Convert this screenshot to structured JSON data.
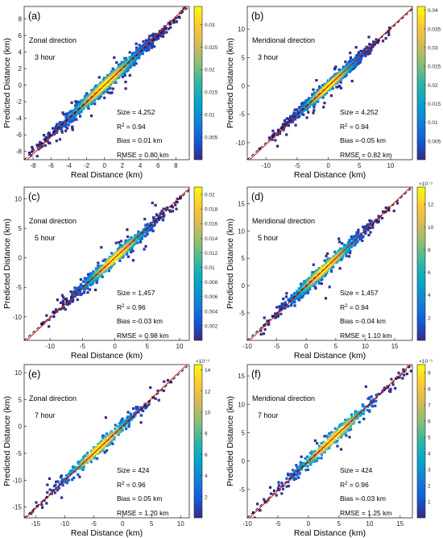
{
  "chart_data": [
    {
      "type": "scatter",
      "panel_label": "(a)",
      "direction_label": "Zonal direction",
      "time_label": "3 hour",
      "xlabel": "Real Distance (km)",
      "ylabel": "Predicted Distance (km)",
      "xlim": [
        -9,
        9.5
      ],
      "ylim": [
        -9,
        9.5
      ],
      "xticks": [
        -8,
        -6,
        -4,
        -2,
        0,
        2,
        4,
        6,
        8
      ],
      "yticks": [
        -8,
        -6,
        -4,
        -2,
        0,
        2,
        4,
        6,
        8
      ],
      "colorbar_ticks": [
        0.005,
        0.01,
        0.015,
        0.02,
        0.025,
        0.03
      ],
      "colorbar_tick_labels": [
        "0.005",
        "0.01",
        "0.015",
        "0.02",
        "0.025",
        "0.03"
      ],
      "colorbar_max": 0.034,
      "colorbar_exponent": "",
      "stats": {
        "size": "Size = 4,252",
        "r2": "0.94",
        "bias": "Bias = 0.01 km",
        "rmse": "RMSE = 0.80 km"
      },
      "fit_line": {
        "slope": 1.0,
        "intercept": 0.0
      },
      "point_spread_x": 3.1,
      "point_noise": 0.75,
      "n_points": 1300
    },
    {
      "type": "scatter",
      "panel_label": "(b)",
      "direction_label": "Meridional direction",
      "time_label": "3 hour",
      "xlabel": "Real Distance (km)",
      "ylabel": "Predicted Distance (km)",
      "xlim": [
        -13,
        13.5
      ],
      "ylim": [
        -13,
        14
      ],
      "xticks": [
        -10,
        -5,
        0,
        5,
        10
      ],
      "yticks": [
        -10,
        -5,
        0,
        5,
        10
      ],
      "colorbar_ticks": [
        0.005,
        0.01,
        0.015,
        0.02,
        0.025,
        0.03,
        0.035,
        0.04
      ],
      "colorbar_tick_labels": [
        "0.005",
        "0.01",
        "0.015",
        "0.02",
        "0.025",
        "0.03",
        "0.035",
        "0.04"
      ],
      "colorbar_max": 0.041,
      "colorbar_exponent": "",
      "stats": {
        "size": "Size = 4,252",
        "r2": "0.94",
        "bias": "Bias =-0.05 km",
        "rmse": "RMSE = 0.82 km"
      },
      "fit_line": {
        "slope": 1.0,
        "intercept": -0.05
      },
      "point_spread_x": 3.4,
      "point_noise": 0.8,
      "n_points": 1300
    },
    {
      "type": "scatter",
      "panel_label": "(c)",
      "direction_label": "Zonal direction",
      "time_label": "5 hour",
      "xlabel": "Real Distance (km)",
      "ylabel": "Predicted Distance (km)",
      "xlim": [
        -14,
        11.5
      ],
      "ylim": [
        -14,
        12
      ],
      "xticks": [
        -10,
        -5,
        0,
        5,
        10
      ],
      "yticks": [
        -10,
        -5,
        0,
        5,
        10
      ],
      "colorbar_ticks": [
        0.002,
        0.004,
        0.006,
        0.008,
        0.01,
        0.012,
        0.014,
        0.016,
        0.018,
        0.02
      ],
      "colorbar_tick_labels": [
        "0.002",
        "0.004",
        "0.006",
        "0.008",
        "0.01",
        "0.012",
        "0.014",
        "0.016",
        "0.018",
        "0.02"
      ],
      "colorbar_max": 0.021,
      "colorbar_exponent": "",
      "stats": {
        "size": "Size = 1,457",
        "r2": "0.96",
        "bias": "Bias =-0.03 km",
        "rmse": "RMSE = 0.98 km"
      },
      "fit_line": {
        "slope": 1.0,
        "intercept": -0.03
      },
      "point_spread_x": 3.8,
      "point_noise": 1.0,
      "n_points": 800
    },
    {
      "type": "scatter",
      "panel_label": "(d)",
      "direction_label": "Meridional direction",
      "time_label": "5 hour",
      "xlabel": "Real Distance (km)",
      "ylabel": "Predicted Distance (km)",
      "xlim": [
        -10,
        18
      ],
      "ylim": [
        -10,
        18
      ],
      "xticks": [
        -10,
        -5,
        0,
        5,
        10,
        15
      ],
      "yticks": [
        -5,
        0,
        5,
        10,
        15
      ],
      "colorbar_ticks": [
        2,
        4,
        6,
        8,
        10,
        12
      ],
      "colorbar_tick_labels": [
        "2",
        "4",
        "6",
        "8",
        "10",
        "12"
      ],
      "colorbar_max": 13.5,
      "colorbar_exponent": "×10⁻³",
      "stats": {
        "size": "Size = 1,457",
        "r2": "0.94",
        "bias": "Bias =-0.04 km",
        "rmse": "RMSE = 1.10 km"
      },
      "fit_line": {
        "slope": 1.0,
        "intercept": -0.04
      },
      "point_spread_x": 4.2,
      "point_noise": 1.1,
      "n_points": 800,
      "center": 3
    },
    {
      "type": "scatter",
      "panel_label": "(e)",
      "direction_label": "Zonal direction",
      "time_label": "7 hour",
      "xlabel": "Real Distance (km)",
      "ylabel": "Predicted Distance (km)",
      "xlim": [
        -17,
        11.5
      ],
      "ylim": [
        -17,
        11.5
      ],
      "xticks": [
        -15,
        -10,
        -5,
        0,
        5,
        10
      ],
      "yticks": [
        -15,
        -10,
        -5,
        0,
        5,
        10
      ],
      "colorbar_ticks": [
        2,
        4,
        6,
        8,
        10,
        12,
        14
      ],
      "colorbar_tick_labels": [
        "2",
        "4",
        "6",
        "8",
        "10",
        "12",
        "14"
      ],
      "colorbar_max": 14.5,
      "colorbar_exponent": "×10⁻³",
      "stats": {
        "size": "Size = 424",
        "r2": "0.96",
        "bias": "Bias = 0.05 km",
        "rmse": "RMSE = 1.20 km"
      },
      "fit_line": {
        "slope": 1.0,
        "intercept": 0.05
      },
      "point_spread_x": 4.5,
      "point_noise": 1.2,
      "n_points": 380,
      "center": -4
    },
    {
      "type": "scatter",
      "panel_label": "(f)",
      "direction_label": "Meridional direction",
      "time_label": "7 hour",
      "xlabel": "Real Distance (km)",
      "ylabel": "Predicted Distance (km)",
      "xlim": [
        -10,
        17
      ],
      "ylim": [
        -10,
        17
      ],
      "xticks": [
        -10,
        -5,
        0,
        5,
        10,
        15
      ],
      "yticks": [
        -5,
        0,
        5,
        10,
        15
      ],
      "colorbar_ticks": [
        1,
        2,
        3,
        4,
        5,
        6,
        7,
        8,
        9
      ],
      "colorbar_tick_labels": [
        "1",
        "2",
        "3",
        "4",
        "5",
        "6",
        "7",
        "8",
        "9"
      ],
      "colorbar_max": 9.5,
      "colorbar_exponent": "×10⁻³",
      "stats": {
        "size": "Size = 424",
        "r2": "0.96",
        "bias": "Bias =-0.03 km",
        "rmse": "RMSE = 1.25 km"
      },
      "fit_line": {
        "slope": 1.0,
        "intercept": -0.03
      },
      "point_spread_x": 4.8,
      "point_noise": 1.25,
      "n_points": 380,
      "center": 4
    }
  ],
  "colors": {
    "fit_line": "#cc2020",
    "one_to_one": "#000000",
    "colormap": [
      "#352a87",
      "#0f5cdd",
      "#1481d6",
      "#06a4ca",
      "#2eb7a4",
      "#87bf77",
      "#d1bb59",
      "#fec832",
      "#f9fb0e"
    ]
  }
}
